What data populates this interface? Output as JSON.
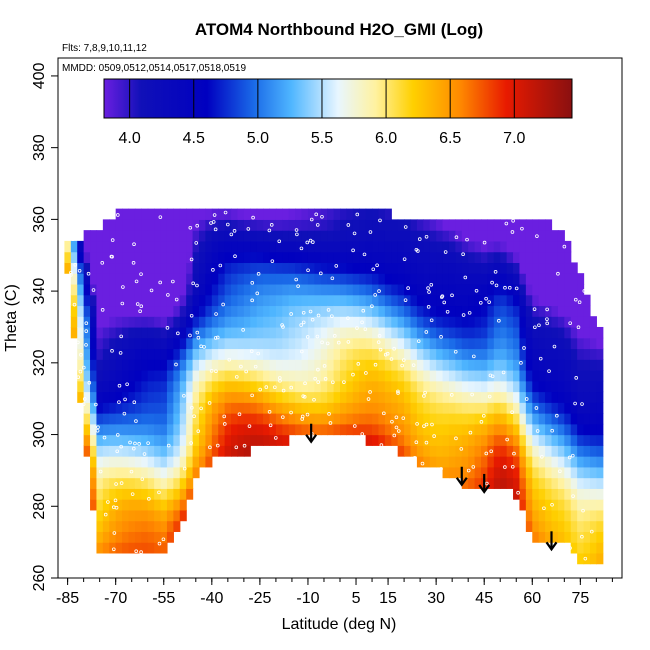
{
  "chart_data": {
    "type": "heatmap",
    "title": "ATOM4 Northbound H2O_GMI (Log)",
    "subtitle_flights": "Flts: 7,8,9,10,11,12",
    "subtitle_dates": "MMDD: 0509,0512,0514,0517,0518,0519",
    "xlabel": "Latitude (deg N)",
    "ylabel": "Theta (C)",
    "xlim": [
      -88,
      88
    ],
    "ylim": [
      260,
      405
    ],
    "x_ticks": [
      -85,
      -70,
      -55,
      -40,
      -25,
      -10,
      5,
      15,
      30,
      45,
      60,
      75
    ],
    "y_ticks": [
      260,
      280,
      300,
      320,
      340,
      360,
      380,
      400
    ],
    "colorbar": {
      "range": [
        3.8,
        7.45
      ],
      "ticks": [
        4.0,
        4.5,
        5.0,
        5.5,
        6.0,
        6.5,
        7.0
      ],
      "tick_labels": [
        "4.0",
        "4.5",
        "5.0",
        "5.5",
        "6.0",
        "6.5",
        "7.0"
      ]
    },
    "arrows": [
      {
        "lat": -9,
        "theta": 298
      },
      {
        "lat": 38,
        "theta": 286
      },
      {
        "lat": 45,
        "theta": 284
      },
      {
        "lat": 66,
        "theta": 268
      }
    ],
    "field_profile": {
      "lat": [
        -85,
        -80,
        -75,
        -70,
        -65,
        -60,
        -55,
        -50,
        -45,
        -40,
        -35,
        -30,
        -25,
        -20,
        -15,
        -10,
        -5,
        0,
        5,
        10,
        15,
        20,
        25,
        30,
        35,
        40,
        45,
        50,
        55,
        60,
        65,
        70,
        75,
        80
      ],
      "theta_bottom": [
        345,
        300,
        266,
        266,
        266,
        266,
        266,
        274,
        288,
        293,
        295,
        295,
        296,
        297,
        299,
        300,
        300,
        300,
        299,
        298,
        296,
        295,
        292,
        290,
        288,
        285,
        284,
        287,
        283,
        270,
        270,
        270,
        265,
        265
      ],
      "theta_top": [
        355,
        355,
        358,
        362,
        363,
        362,
        362,
        362,
        362,
        362,
        362,
        362,
        362,
        362,
        362,
        362,
        362,
        362,
        362,
        362,
        362,
        360,
        360,
        360,
        360,
        360,
        360,
        360,
        360,
        360,
        360,
        355,
        345,
        330
      ]
    }
  }
}
